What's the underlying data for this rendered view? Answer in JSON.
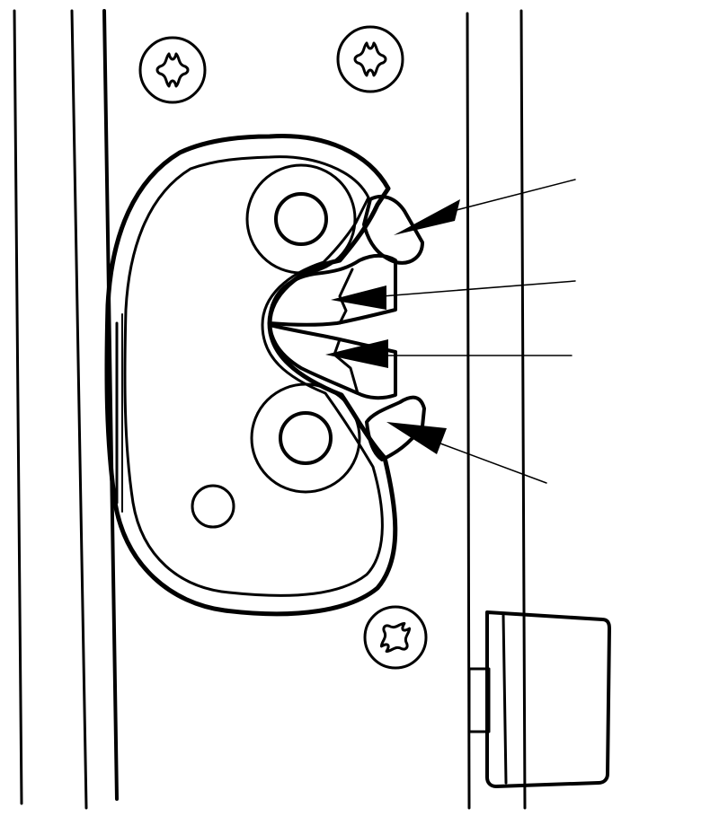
{
  "figure": {
    "description_free": true,
    "colors": {
      "ink": "#000000",
      "paper": "#ffffff"
    },
    "components": {
      "screws": [
        "screw-icon",
        "screw-icon",
        "screw-icon"
      ],
      "callout_arrows": 4
    }
  }
}
